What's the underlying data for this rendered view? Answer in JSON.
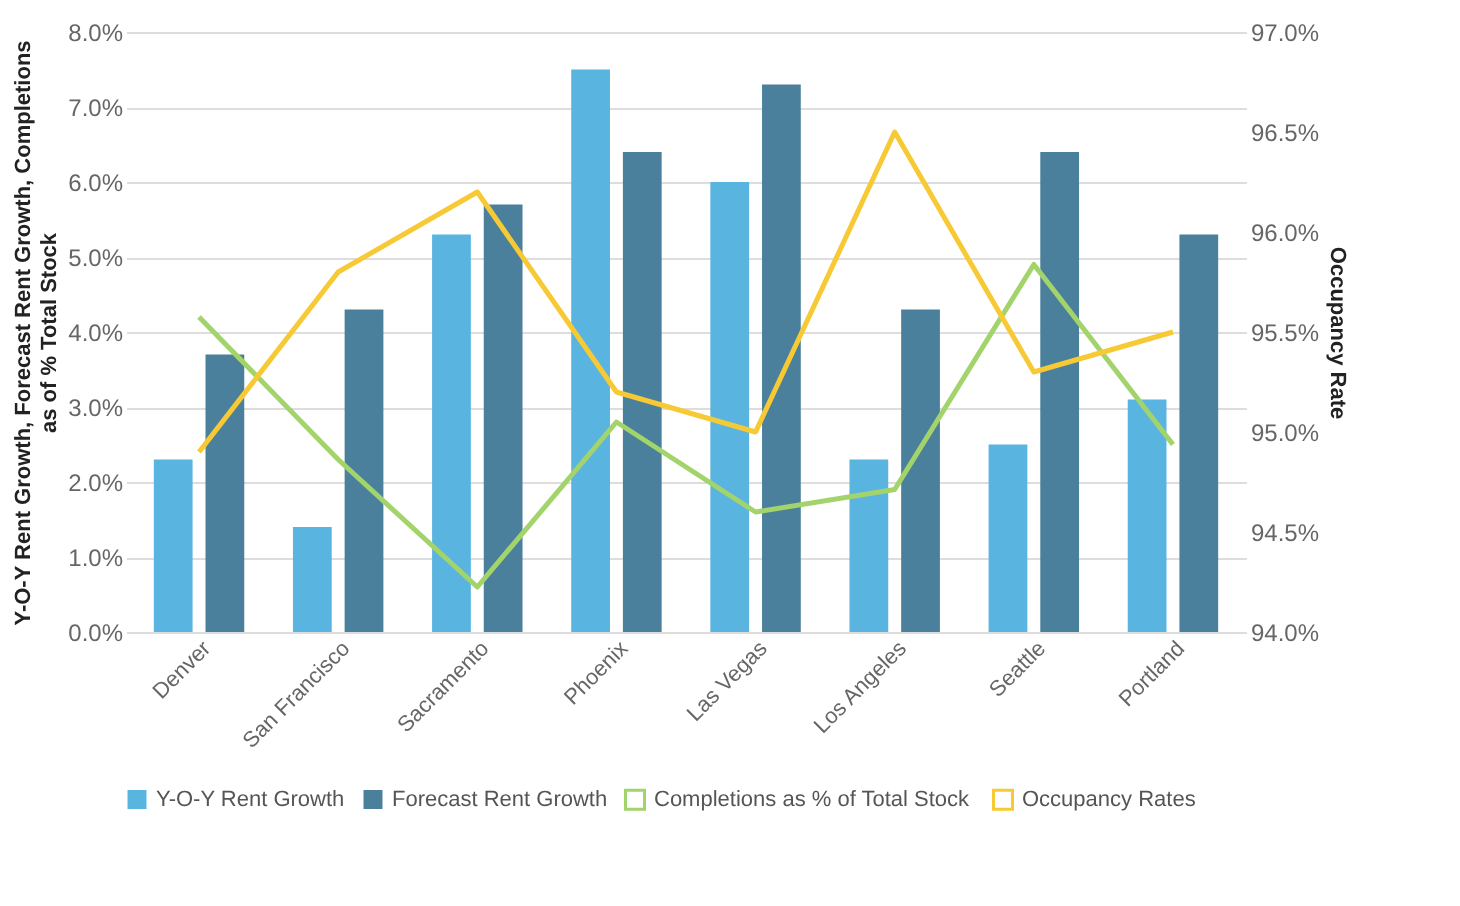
{
  "chart_data": {
    "type": "bar",
    "categories": [
      "Denver",
      "San Francisco",
      "Sacramento",
      "Phoenix",
      "Las Vegas",
      "Los Angeles",
      "Seattle",
      "Portland"
    ],
    "series": [
      {
        "name": "Y-O-Y Rent Growth",
        "color": "#5ab4e0",
        "values": [
          2.3,
          1.4,
          5.3,
          7.5,
          6.0,
          2.3,
          2.5,
          3.1
        ]
      },
      {
        "name": "Forecast Rent Growth",
        "color": "#4a809c",
        "values": [
          3.7,
          4.3,
          5.7,
          6.4,
          7.3,
          4.3,
          6.4,
          5.3
        ]
      },
      {
        "name": "Completions as % of Total Stock",
        "type": "line",
        "color": "#a3d36b",
        "values": [
          4.2,
          2.3,
          0.6,
          2.8,
          1.6,
          1.9,
          4.9,
          2.5
        ]
      },
      {
        "name": "Occupancy Rates",
        "type": "line",
        "axis": "y2",
        "color": "#f7c934",
        "values": [
          94.9,
          95.8,
          96.2,
          95.2,
          95.0,
          96.5,
          95.3,
          95.5
        ]
      }
    ],
    "ylabel": "Y-O-Y Rent Growth, Forecast Rent Growth, Completions as of % Total Stock",
    "y2label": "Occupancy Rate",
    "ylim": [
      0,
      8
    ],
    "yticks": [
      {
        "value": 0,
        "label": "0.0%"
      },
      {
        "value": 1,
        "label": "1.0%"
      },
      {
        "value": 2,
        "label": "2.0%"
      },
      {
        "value": 3,
        "label": "3.0%"
      },
      {
        "value": 4,
        "label": "4.0%"
      },
      {
        "value": 5,
        "label": "5.0%"
      },
      {
        "value": 6,
        "label": "6.0%"
      },
      {
        "value": 7,
        "label": "7.0%"
      },
      {
        "value": 8,
        "label": "8.0%"
      }
    ],
    "y2lim": [
      94,
      97
    ],
    "y2ticks": [
      {
        "value": 94,
        "label": "94.0%"
      },
      {
        "value": 94.5,
        "label": "94.5%"
      },
      {
        "value": 95,
        "label": "95.0%"
      },
      {
        "value": 95.5,
        "label": "95.5%"
      },
      {
        "value": 96,
        "label": "96.0%"
      },
      {
        "value": 96.5,
        "label": "96.5%"
      },
      {
        "value": 97,
        "label": "97.0%"
      }
    ],
    "grid": "y",
    "legend": "bottom",
    "marker": "none",
    "line_style": "solid"
  }
}
